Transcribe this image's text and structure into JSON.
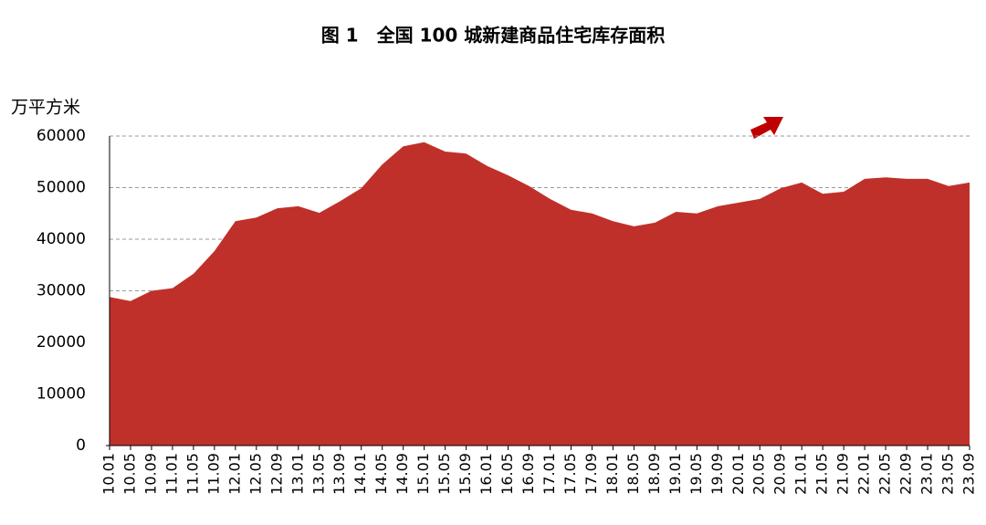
{
  "chart_data": {
    "type": "area",
    "title": "图 1　全国 100 城新建商品住宅库存面积",
    "y_label": "万平方米",
    "categories": [
      "10.01",
      "10.05",
      "10.09",
      "11.01",
      "11.05",
      "11.09",
      "12.01",
      "12.05",
      "12.09",
      "13.01",
      "13.05",
      "13.09",
      "14.01",
      "14.05",
      "14.09",
      "15.01",
      "15.05",
      "15.09",
      "16.01",
      "16.05",
      "16.09",
      "17.01",
      "17.05",
      "17.09",
      "18.01",
      "18.05",
      "18.09",
      "19.01",
      "19.05",
      "19.09",
      "20.01",
      "20.05",
      "20.09",
      "21.01",
      "21.05",
      "21.09",
      "22.01",
      "22.05",
      "22.09",
      "23.01",
      "23.05",
      "23.09"
    ],
    "values": [
      28800,
      28000,
      30000,
      30500,
      33300,
      37700,
      43500,
      44200,
      46000,
      46400,
      45100,
      47400,
      49900,
      54500,
      58000,
      58800,
      57000,
      56600,
      54200,
      52400,
      50300,
      47800,
      45700,
      45000,
      43500,
      42500,
      43200,
      45300,
      45000,
      46400,
      47100,
      47800,
      49900,
      51000,
      48800,
      49200,
      51700,
      52000,
      51700,
      51700,
      50300,
      51000
    ],
    "color": "#c0302a",
    "ylim": [
      0,
      60000
    ],
    "yticks": [
      0,
      10000,
      20000,
      30000,
      40000,
      50000,
      60000
    ],
    "grid": true
  }
}
